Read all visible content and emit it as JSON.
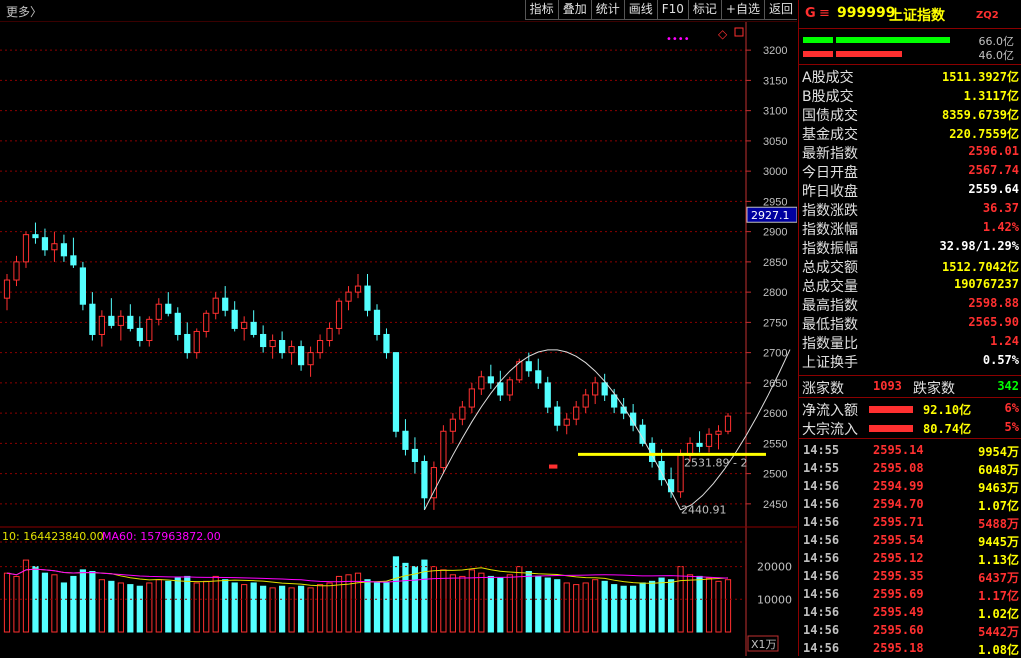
{
  "toolbar": {
    "more_label": "更多〉",
    "buttons": [
      "指标",
      "叠加",
      "统计",
      "画线",
      "F10",
      "标记",
      "+自选",
      "返回"
    ]
  },
  "chart": {
    "current_price_tag": "2927.1",
    "y_axis_ticks": [
      "3200",
      "3150",
      "3100",
      "3050",
      "3000",
      "2950",
      "2900",
      "2850",
      "2800",
      "2750",
      "2700",
      "2650",
      "2600",
      "2550",
      "2500",
      "2450"
    ],
    "volume_axis_ticks": [
      "20000",
      "10000"
    ],
    "volume_unit": "X1万",
    "ma_legend_1": "10: 164423840.00",
    "ma_legend_2": "MA60: 157963872.00",
    "support_label": "2531.89 - 2",
    "low_label": "2440.91"
  },
  "colors": {
    "up": "#ff3030",
    "down": "#54ffff",
    "yellow": "#ffff00",
    "grid": "#8b0000",
    "ma_yellow": "#e0e000",
    "ma_purple": "#ff00ff",
    "bar_green": "#00ff00"
  },
  "quote": {
    "g_label": "G",
    "menu_icon": "≡",
    "code": "999999",
    "name": "上证指数",
    "zq_label": "ZQ2",
    "bar_green_value": "66.0亿",
    "bar_red_value": "46.0亿",
    "rows": [
      {
        "label": "A股成交",
        "value": "1511.3927亿",
        "color": "#ffff00"
      },
      {
        "label": "B股成交",
        "value": "1.3117亿",
        "color": "#ffff00"
      },
      {
        "label": "国债成交",
        "value": "8359.6739亿",
        "color": "#ffff00"
      },
      {
        "label": "基金成交",
        "value": "220.7559亿",
        "color": "#ffff00"
      },
      {
        "label": "最新指数",
        "value": "2596.01",
        "color": "#ff3030"
      },
      {
        "label": "今日开盘",
        "value": "2567.74",
        "color": "#ff3030"
      },
      {
        "label": "昨日收盘",
        "value": "2559.64",
        "color": "#ffffff"
      },
      {
        "label": "指数涨跌",
        "value": "36.37",
        "color": "#ff3030"
      },
      {
        "label": "指数涨幅",
        "value": "1.42%",
        "color": "#ff3030"
      },
      {
        "label": "指数振幅",
        "value": "32.98/1.29%",
        "color": "#ffffff"
      },
      {
        "label": "总成交额",
        "value": "1512.7042亿",
        "color": "#ffff00"
      },
      {
        "label": "总成交量",
        "value": "190767237",
        "color": "#ffff00"
      },
      {
        "label": "最高指数",
        "value": "2598.88",
        "color": "#ff3030"
      },
      {
        "label": "最低指数",
        "value": "2565.90",
        "color": "#ff3030"
      },
      {
        "label": "指数量比",
        "value": "1.24",
        "color": "#ff3030"
      },
      {
        "label": "上证换手",
        "value": "0.57%",
        "color": "#ffffff"
      }
    ],
    "rise_label": "涨家数",
    "rise_value": "1093",
    "fall_label": "跌家数",
    "fall_value": "342",
    "flows": [
      {
        "label": "净流入额",
        "value": "92.10亿",
        "pct": "6%"
      },
      {
        "label": "大宗流入",
        "value": "80.74亿",
        "pct": "5%"
      }
    ],
    "ticks": [
      {
        "time": "14:55",
        "price": "2595.14",
        "vol": "9954万",
        "vcolor": "#ffff00"
      },
      {
        "time": "14:55",
        "price": "2595.08",
        "vol": "6048万",
        "vcolor": "#ffff00"
      },
      {
        "time": "14:56",
        "price": "2594.99",
        "vol": "9463万",
        "vcolor": "#ffff00"
      },
      {
        "time": "14:56",
        "price": "2594.70",
        "vol": "1.07亿",
        "vcolor": "#ffff00"
      },
      {
        "time": "14:56",
        "price": "2595.71",
        "vol": "5488万",
        "vcolor": "#ff3030"
      },
      {
        "time": "14:56",
        "price": "2595.54",
        "vol": "9445万",
        "vcolor": "#ffff00"
      },
      {
        "time": "14:56",
        "price": "2595.12",
        "vol": "1.13亿",
        "vcolor": "#ffff00"
      },
      {
        "time": "14:56",
        "price": "2595.35",
        "vol": "6437万",
        "vcolor": "#ff3030"
      },
      {
        "time": "14:56",
        "price": "2595.69",
        "vol": "1.17亿",
        "vcolor": "#ff3030"
      },
      {
        "time": "14:56",
        "price": "2595.49",
        "vol": "1.02亿",
        "vcolor": "#ffff00"
      },
      {
        "time": "14:56",
        "price": "2595.60",
        "vol": "5442万",
        "vcolor": "#ff3030"
      },
      {
        "time": "14:56",
        "price": "2595.18",
        "vol": "1.08亿",
        "vcolor": "#ffff00"
      }
    ]
  },
  "chart_data": {
    "type": "candlestick",
    "ylim": [
      2420,
      3230
    ],
    "volume_ylim": [
      0,
      26000
    ],
    "up_color": "#ff3030",
    "down_color": "#54ffff",
    "candles": [
      [
        2790,
        2830,
        2770,
        2820,
        180
      ],
      [
        2820,
        2860,
        2810,
        2850,
        170
      ],
      [
        2850,
        2900,
        2840,
        2895,
        220
      ],
      [
        2895,
        2915,
        2880,
        2890,
        200
      ],
      [
        2890,
        2905,
        2860,
        2870,
        180
      ],
      [
        2870,
        2900,
        2850,
        2880,
        175
      ],
      [
        2880,
        2895,
        2850,
        2860,
        150
      ],
      [
        2860,
        2890,
        2840,
        2845,
        170
      ],
      [
        2840,
        2850,
        2770,
        2780,
        190
      ],
      [
        2780,
        2800,
        2720,
        2730,
        185
      ],
      [
        2730,
        2770,
        2710,
        2760,
        160
      ],
      [
        2760,
        2790,
        2740,
        2745,
        155
      ],
      [
        2745,
        2770,
        2720,
        2760,
        150
      ],
      [
        2760,
        2780,
        2735,
        2740,
        145
      ],
      [
        2740,
        2760,
        2710,
        2720,
        140
      ],
      [
        2720,
        2760,
        2710,
        2755,
        150
      ],
      [
        2755,
        2790,
        2745,
        2780,
        160
      ],
      [
        2780,
        2800,
        2760,
        2765,
        155
      ],
      [
        2765,
        2775,
        2720,
        2730,
        165
      ],
      [
        2730,
        2750,
        2690,
        2700,
        170
      ],
      [
        2700,
        2740,
        2690,
        2735,
        150
      ],
      [
        2735,
        2770,
        2725,
        2765,
        155
      ],
      [
        2765,
        2800,
        2755,
        2790,
        170
      ],
      [
        2790,
        2810,
        2760,
        2770,
        160
      ],
      [
        2770,
        2785,
        2735,
        2740,
        150
      ],
      [
        2740,
        2760,
        2720,
        2750,
        145
      ],
      [
        2750,
        2770,
        2725,
        2730,
        150
      ],
      [
        2730,
        2745,
        2700,
        2710,
        140
      ],
      [
        2710,
        2730,
        2690,
        2720,
        135
      ],
      [
        2720,
        2735,
        2690,
        2700,
        140
      ],
      [
        2700,
        2720,
        2680,
        2710,
        135
      ],
      [
        2710,
        2720,
        2670,
        2680,
        140
      ],
      [
        2680,
        2710,
        2660,
        2700,
        135
      ],
      [
        2700,
        2730,
        2690,
        2720,
        145
      ],
      [
        2720,
        2750,
        2710,
        2740,
        150
      ],
      [
        2740,
        2790,
        2730,
        2785,
        170
      ],
      [
        2785,
        2810,
        2770,
        2800,
        175
      ],
      [
        2800,
        2830,
        2790,
        2810,
        180
      ],
      [
        2810,
        2830,
        2760,
        2770,
        160
      ],
      [
        2770,
        2780,
        2720,
        2730,
        150
      ],
      [
        2730,
        2740,
        2690,
        2700,
        150
      ],
      [
        2700,
        2700,
        2560,
        2570,
        230
      ],
      [
        2570,
        2590,
        2530,
        2540,
        210
      ],
      [
        2540,
        2560,
        2500,
        2520,
        200
      ],
      [
        2520,
        2530,
        2440,
        2460,
        220
      ],
      [
        2460,
        2520,
        2440,
        2510,
        200
      ],
      [
        2510,
        2580,
        2500,
        2570,
        190
      ],
      [
        2570,
        2600,
        2550,
        2590,
        175
      ],
      [
        2590,
        2620,
        2580,
        2610,
        170
      ],
      [
        2610,
        2650,
        2600,
        2640,
        190
      ],
      [
        2640,
        2670,
        2630,
        2660,
        180
      ],
      [
        2660,
        2680,
        2640,
        2650,
        170
      ],
      [
        2650,
        2670,
        2620,
        2630,
        165
      ],
      [
        2630,
        2660,
        2620,
        2655,
        175
      ],
      [
        2655,
        2690,
        2650,
        2685,
        200
      ],
      [
        2685,
        2700,
        2660,
        2670,
        185
      ],
      [
        2670,
        2690,
        2640,
        2650,
        170
      ],
      [
        2650,
        2660,
        2600,
        2610,
        165
      ],
      [
        2610,
        2620,
        2570,
        2580,
        160
      ],
      [
        2580,
        2600,
        2565,
        2590,
        150
      ],
      [
        2590,
        2620,
        2580,
        2610,
        145
      ],
      [
        2610,
        2640,
        2600,
        2630,
        150
      ],
      [
        2630,
        2660,
        2615,
        2650,
        160
      ],
      [
        2650,
        2665,
        2620,
        2630,
        155
      ],
      [
        2630,
        2640,
        2600,
        2610,
        145
      ],
      [
        2610,
        2625,
        2590,
        2600,
        140
      ],
      [
        2600,
        2615,
        2570,
        2580,
        140
      ],
      [
        2580,
        2590,
        2545,
        2550,
        150
      ],
      [
        2550,
        2560,
        2510,
        2520,
        155
      ],
      [
        2520,
        2540,
        2480,
        2490,
        165
      ],
      [
        2490,
        2510,
        2460,
        2470,
        160
      ],
      [
        2470,
        2540,
        2460,
        2530,
        200
      ],
      [
        2530,
        2560,
        2520,
        2550,
        175
      ],
      [
        2550,
        2570,
        2535,
        2545,
        170
      ],
      [
        2545,
        2575,
        2535,
        2565,
        165
      ],
      [
        2565,
        2580,
        2540,
        2570,
        155
      ],
      [
        2570,
        2600,
        2565,
        2595,
        160
      ]
    ]
  }
}
